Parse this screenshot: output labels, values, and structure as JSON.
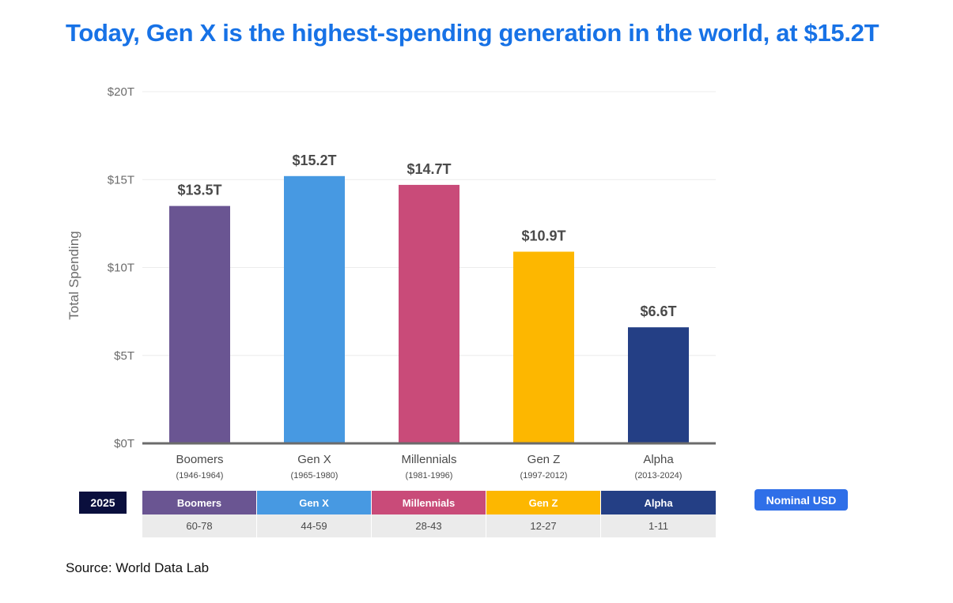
{
  "title": "Today, Gen X is the highest-spending generation in the world, at $15.2T",
  "chart_data": {
    "type": "bar",
    "categories": [
      "Boomers",
      "Gen X",
      "Millennials",
      "Gen Z",
      "Alpha"
    ],
    "category_years": [
      "(1946-1964)",
      "(1965-1980)",
      "(1981-1996)",
      "(1997-2012)",
      "(2013-2024)"
    ],
    "values": [
      13.5,
      15.2,
      14.7,
      10.9,
      6.6
    ],
    "value_labels": [
      "$13.5T",
      "$15.2T",
      "$14.7T",
      "$10.9T",
      "$6.6T"
    ],
    "colors": [
      "#6a5592",
      "#4799e2",
      "#c94b79",
      "#fdb700",
      "#243f85"
    ],
    "ylabel": "Total Spending",
    "ylim": [
      0,
      20
    ],
    "yticks": [
      0,
      5,
      10,
      15,
      20
    ],
    "ytick_labels": [
      "$0T",
      "$5T",
      "$10T",
      "$15T",
      "$20T"
    ],
    "grid": true,
    "legend": "Nominal USD"
  },
  "age_table": {
    "year": "2025",
    "headers": [
      "Boomers",
      "Gen X",
      "Millennials",
      "Gen Z",
      "Alpha"
    ],
    "ages": [
      "60-78",
      "44-59",
      "28-43",
      "12-27",
      "1-11"
    ]
  },
  "source": "Source: World Data Lab"
}
